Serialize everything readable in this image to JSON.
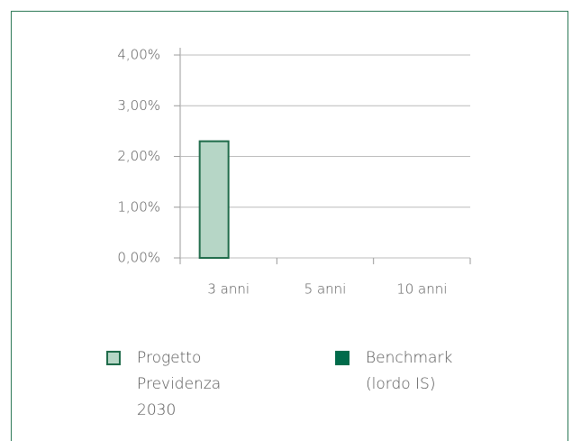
{
  "chart_data": {
    "type": "bar",
    "categories": [
      "3 anni",
      "5 anni",
      "10 anni"
    ],
    "series": [
      {
        "name": "Progetto Previdenza 2030",
        "color": "#b6d6c6",
        "border": "#1f6b4a",
        "values": [
          2.3,
          null,
          null
        ]
      },
      {
        "name": "Benchmark (lordo IS)",
        "color": "#006b4a",
        "values": [
          null,
          null,
          null
        ]
      }
    ],
    "ylim": [
      0,
      4
    ],
    "yticks": [
      {
        "value": 0,
        "label": "0,00%"
      },
      {
        "value": 1,
        "label": "1,00%"
      },
      {
        "value": 2,
        "label": "2,00%"
      },
      {
        "value": 3,
        "label": "3,00%"
      },
      {
        "value": 4,
        "label": "4,00%"
      }
    ],
    "grid": true
  }
}
